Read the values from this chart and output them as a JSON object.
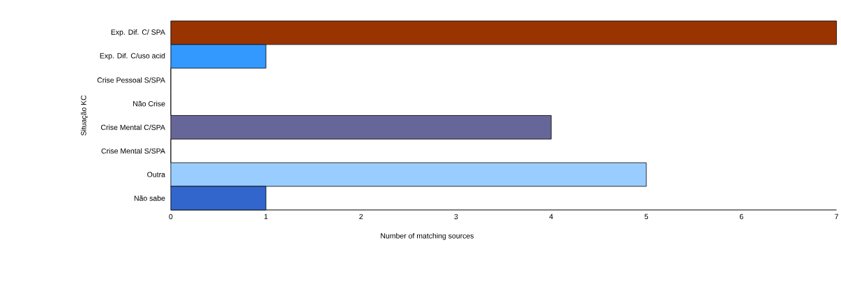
{
  "chart_data": {
    "type": "bar",
    "orientation": "horizontal",
    "categories": [
      "Exp. Dif. C/ SPA",
      "Exp. Dif. C/uso acid",
      "Crise Pessoal S/SPA",
      "Não Crise",
      "Crise Mental C/SPA",
      "Crise Mental S/SPA",
      "Outra",
      "Não sabe"
    ],
    "values": [
      7,
      1,
      0,
      0,
      4,
      0,
      5,
      1
    ],
    "colors": [
      "#993300",
      "#3399ff",
      "#ffffff",
      "#ffffff",
      "#666699",
      "#ffffff",
      "#99ccff",
      "#3366cc"
    ],
    "xlabel": "Number of matching sources",
    "ylabel": "Situação KC",
    "xlim": [
      0,
      7
    ],
    "xticks": [
      0,
      1,
      2,
      3,
      4,
      5,
      6,
      7
    ]
  }
}
